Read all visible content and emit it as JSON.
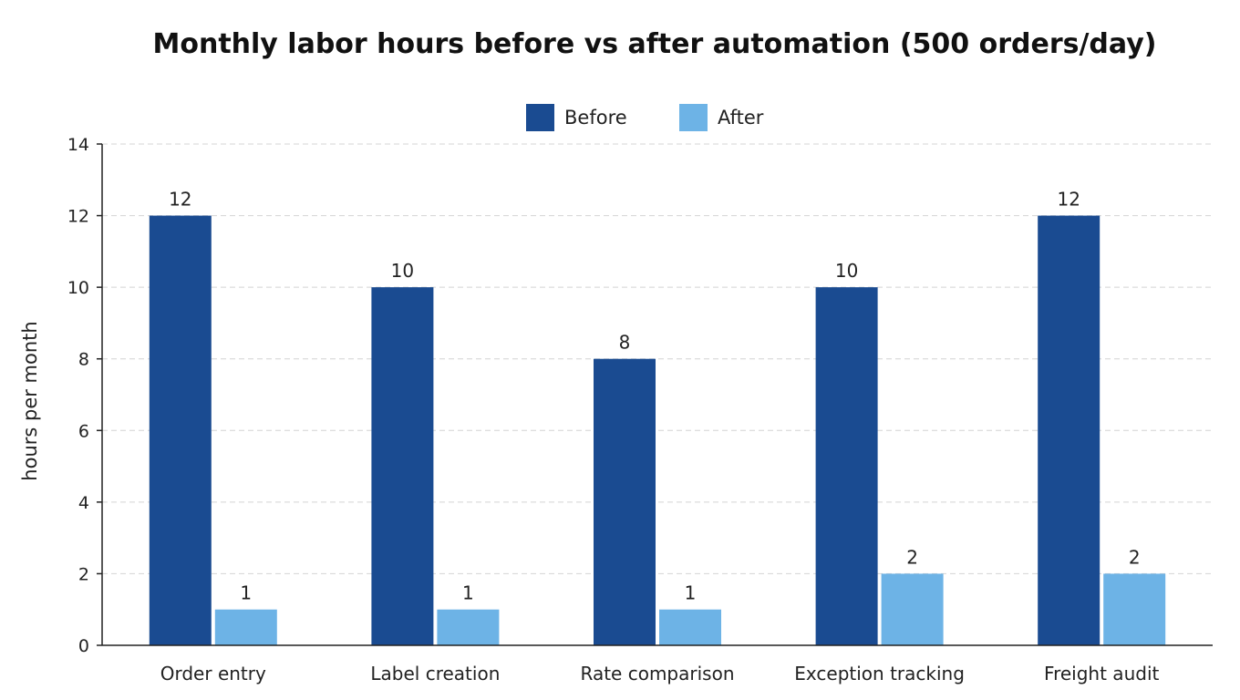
{
  "chart_data": {
    "type": "bar",
    "title": "Monthly labor hours before vs after automation (500 orders/day)",
    "xlabel": "",
    "ylabel": "hours per month",
    "ylim": [
      0,
      14
    ],
    "yticks": [
      0,
      2,
      4,
      6,
      8,
      10,
      12,
      14
    ],
    "grid": true,
    "legend_position": "top-center",
    "categories": [
      "Order entry",
      "Label creation",
      "Rate comparison",
      "Exception tracking",
      "Freight audit"
    ],
    "series": [
      {
        "name": "Before",
        "color": "#1a4b91",
        "values": [
          12,
          10,
          8,
          10,
          12
        ]
      },
      {
        "name": "After",
        "color": "#6db3e6",
        "values": [
          1,
          1,
          1,
          2,
          2
        ]
      }
    ]
  }
}
